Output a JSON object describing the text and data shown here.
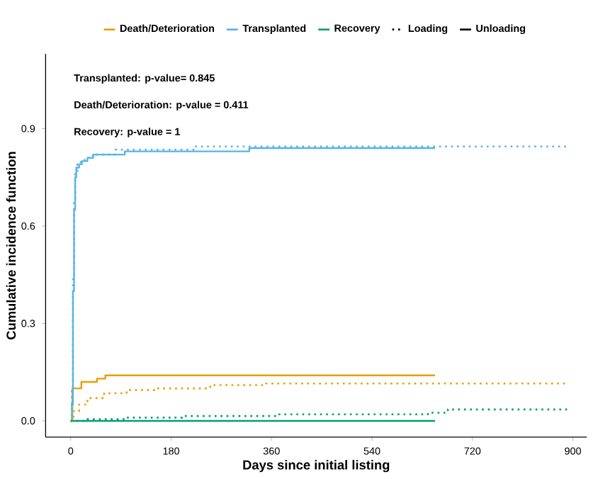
{
  "chart_data": {
    "type": "step",
    "xlabel": "Days since initial listing",
    "ylabel": "Cumulative incidence function",
    "xlim": [
      -45,
      925
    ],
    "ylim": [
      -0.05,
      1.13
    ],
    "xticks": [
      0,
      180,
      360,
      540,
      720,
      900
    ],
    "yticks": [
      {
        "value": 0,
        "label": "0.0"
      },
      0.3,
      0.6,
      0.9
    ],
    "legend": "top",
    "grid": false,
    "annotations": [
      "Transplanted: p-value= 0.845",
      "Death/Deterioration: p-value = 0.411",
      "Recovery: p-value = 1"
    ],
    "series": [
      {
        "name": "Death/Deterioration",
        "color": "#E69F00",
        "line_style": "solid",
        "x": [
          0,
          3,
          19,
          47,
          62,
          653
        ],
        "values": [
          0,
          0.1,
          0.12,
          0.13,
          0.14,
          0.14
        ]
      },
      {
        "name": "Transplanted",
        "color": "#56B4E9",
        "line_style": "solid",
        "x": [
          0,
          2,
          4,
          6,
          8,
          10,
          15,
          20,
          30,
          40,
          97,
          320,
          653
        ],
        "values": [
          0,
          0.05,
          0.4,
          0.65,
          0.75,
          0.78,
          0.79,
          0.8,
          0.81,
          0.82,
          0.83,
          0.84,
          0.84
        ]
      },
      {
        "name": "Recovery",
        "color": "#009E73",
        "line_style": "solid",
        "x": [
          0,
          653
        ],
        "values": [
          0,
          0
        ]
      },
      {
        "color": "#E69F00",
        "line_style": "dotted",
        "x": [
          0,
          5,
          15,
          30,
          60,
          100,
          150,
          250,
          350,
          890
        ],
        "values": [
          0,
          0.03,
          0.05,
          0.07,
          0.085,
          0.095,
          0.1,
          0.11,
          0.115,
          0.115
        ]
      },
      {
        "color": "#56B4E9",
        "line_style": "dotted",
        "x": [
          0,
          2,
          4,
          6,
          8,
          12,
          18,
          25,
          40,
          80,
          222,
          890
        ],
        "values": [
          0,
          0.1,
          0.45,
          0.68,
          0.76,
          0.79,
          0.8,
          0.81,
          0.82,
          0.835,
          0.845,
          0.845
        ]
      },
      {
        "color": "#009E73",
        "line_style": "dotted",
        "x": [
          0,
          30,
          100,
          200,
          370,
          640,
          676,
          890
        ],
        "values": [
          0,
          0.005,
          0.01,
          0.015,
          0.02,
          0.025,
          0.035,
          0.035
        ]
      },
      {
        "name": "Loading",
        "color": "#000000",
        "line_style": "dotted"
      },
      {
        "name": "Unloading",
        "color": "#000000",
        "line_style": "solid"
      }
    ]
  }
}
